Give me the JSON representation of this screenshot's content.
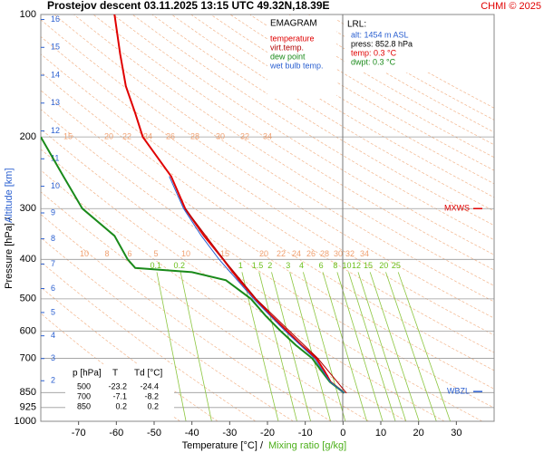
{
  "chart_data": {
    "type": "emagram",
    "title": "Prostejov  descent  03.11.2025 13:15 UTC  49.32N,18.39E",
    "credit": "CHMI © 2025",
    "y_label": "Pressure [hPa]  /",
    "y2_label": "Altitude [km]",
    "x_label": "Temperature [°C]  /",
    "x2_label": "Mixing ratio [g/kg]",
    "xlim": [
      -80,
      40
    ],
    "xticks": [
      -70,
      -60,
      -50,
      -40,
      -30,
      -20,
      -10,
      0,
      10,
      20,
      30
    ],
    "ylim": [
      1000,
      100
    ],
    "log_y": true,
    "yticks": [
      100,
      200,
      300,
      400,
      500,
      600,
      700,
      850,
      925,
      1000
    ],
    "altitude_ticks": [
      2,
      3,
      4,
      5,
      6,
      7,
      8,
      9,
      10,
      11,
      12,
      13,
      14,
      15,
      16
    ],
    "legend_title": "EMAGRAM",
    "series": [
      {
        "name": "temperature",
        "color": "#e00000",
        "pressure": [
          852.8,
          850,
          800,
          750,
          700,
          650,
          600,
          550,
          500,
          450,
          420,
          400,
          350,
          300,
          250,
          200,
          175,
          150,
          125,
          100
        ],
        "values": [
          0.3,
          0.2,
          -3.3,
          -5.0,
          -7.1,
          -11.0,
          -14.8,
          -19.0,
          -23.2,
          -27.5,
          -30.0,
          -31.7,
          -36.8,
          -41.8,
          -45.5,
          -53.0,
          -55.0,
          -57.5,
          -59.0,
          -60.5
        ]
      },
      {
        "name": "virt.temp.",
        "color": "#b00000",
        "pressure": [
          852.8,
          850,
          700,
          500,
          400,
          300
        ],
        "values": [
          0.9,
          0.8,
          -6.7,
          -23.0,
          -31.6,
          -41.8
        ]
      },
      {
        "name": "dew point",
        "color": "#1a8a1a",
        "pressure": [
          852.8,
          850,
          800,
          750,
          700,
          650,
          600,
          550,
          500,
          450,
          430,
          420,
          400,
          350,
          300,
          250,
          200
        ],
        "values": [
          0.3,
          0.2,
          -3.5,
          -5.8,
          -8.2,
          -12.5,
          -16.5,
          -20.5,
          -24.4,
          -31.0,
          -40.0,
          -55.0,
          -57.0,
          -60.5,
          -69.0,
          -74.0,
          -80.0
        ]
      },
      {
        "name": "wet bulb temp.",
        "color": "#2a5fd0",
        "pressure": [
          852.8,
          850,
          800,
          750,
          700,
          600,
          500,
          400,
          350,
          300,
          250
        ],
        "values": [
          0.3,
          0.2,
          -3.4,
          -5.4,
          -7.6,
          -15.3,
          -23.7,
          -32.8,
          -37.5,
          -42.2,
          -46.0
        ]
      }
    ],
    "mixing_ratios": [
      0.1,
      0.2,
      1,
      1.5,
      2,
      3,
      4,
      6,
      8,
      10,
      12,
      15,
      20,
      25
    ],
    "adiabat_labels": [
      {
        "pressure": 200,
        "labels": [
          15,
          20,
          22,
          24,
          26,
          28,
          30,
          32,
          34
        ]
      },
      {
        "pressure": 388,
        "labels": [
          10,
          8,
          6,
          5,
          10,
          15,
          20,
          22,
          24,
          26,
          28,
          30,
          32,
          34
        ]
      }
    ],
    "lrl": {
      "title": "LRL:",
      "lines": [
        "alt: 1454 m ASL",
        "press: 852.8 hPa",
        "temp: 0.3 °C",
        "dwpt: 0.3 °C"
      ]
    },
    "markers": [
      {
        "label": "MXWS",
        "pressure": 300
      },
      {
        "label": "WBZL",
        "pressure": 845
      }
    ],
    "table": {
      "header": [
        "p [hPa]",
        "T",
        "Td [°C]"
      ],
      "rows": [
        [
          500,
          -23.2,
          -24.4
        ],
        [
          700,
          -7.1,
          -8.2
        ],
        [
          850,
          0.2,
          0.2
        ]
      ]
    }
  }
}
